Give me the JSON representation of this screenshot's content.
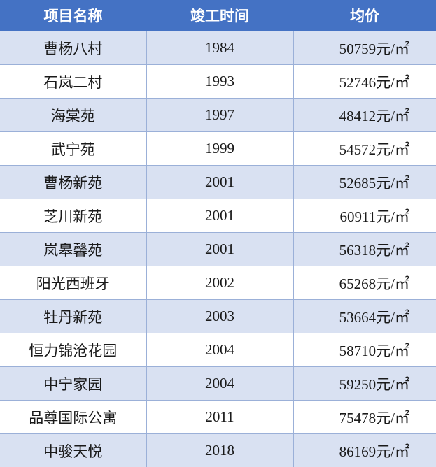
{
  "header": {
    "name": "项目名称",
    "year": "竣工时间",
    "price": "均价"
  },
  "colors": {
    "header_bg": "#4472C4",
    "band_bg": "#D9E1F2"
  },
  "rows": [
    {
      "name": "曹杨八村",
      "year": "1984",
      "price": "50759元/㎡"
    },
    {
      "name": "石岚二村",
      "year": "1993",
      "price": "52746元/㎡"
    },
    {
      "name": "海棠苑",
      "year": "1997",
      "price": "48412元/㎡"
    },
    {
      "name": "武宁苑",
      "year": "1999",
      "price": "54572元/㎡"
    },
    {
      "name": "曹杨新苑",
      "year": "2001",
      "price": "52685元/㎡"
    },
    {
      "name": "芝川新苑",
      "year": "2001",
      "price": "60911元/㎡"
    },
    {
      "name": "岚皋馨苑",
      "year": "2001",
      "price": "56318元/㎡"
    },
    {
      "name": "阳光西班牙",
      "year": "2002",
      "price": "65268元/㎡"
    },
    {
      "name": "牡丹新苑",
      "year": "2003",
      "price": "53664元/㎡"
    },
    {
      "name": "恒力锦沧花园",
      "year": "2004",
      "price": "58710元/㎡"
    },
    {
      "name": "中宁家园",
      "year": "2004",
      "price": "59250元/㎡"
    },
    {
      "name": "品尊国际公寓",
      "year": "2011",
      "price": "75478元/㎡"
    },
    {
      "name": "中骏天悦",
      "year": "2018",
      "price": "86169元/㎡"
    }
  ]
}
